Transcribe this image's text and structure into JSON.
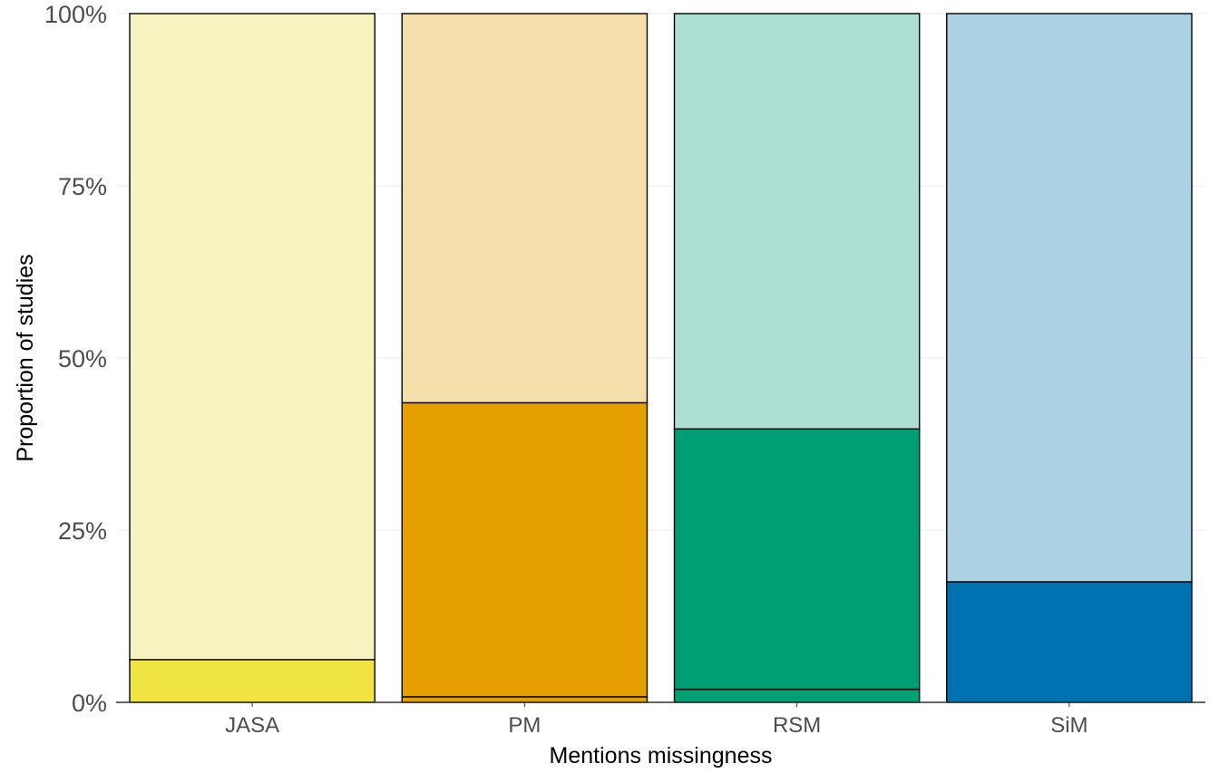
{
  "chart_data": {
    "type": "bar",
    "stacked": true,
    "xlabel": "Mentions missingness",
    "ylabel": "Proportion of studies",
    "ylim": [
      0,
      100
    ],
    "y_ticks": [
      "0%",
      "25%",
      "50%",
      "75%",
      "100%"
    ],
    "y_tick_values": [
      0,
      25,
      50,
      75,
      100
    ],
    "grid": true,
    "legend": "none",
    "categories": [
      "JASA",
      "PM",
      "RSM",
      "SiM"
    ],
    "segments": [
      {
        "values": [
          0,
          0.8,
          1.9,
          0
        ]
      },
      {
        "values": [
          6.2,
          42.7,
          37.8,
          17.5
        ]
      },
      {
        "values": [
          93.8,
          56.5,
          60.3,
          82.5
        ]
      }
    ],
    "colors": {
      "JASA": [
        "#F0E442",
        "#F0E442",
        "#F7F4C1"
      ],
      "PM": [
        "#E69F00",
        "#E69F00",
        "#F4DEA9"
      ],
      "RSM": [
        "#009E73",
        "#009E73",
        "#ADE0D3"
      ],
      "SiM": [
        "#0072B2",
        "#0072B2",
        "#ADD2E6"
      ]
    }
  }
}
